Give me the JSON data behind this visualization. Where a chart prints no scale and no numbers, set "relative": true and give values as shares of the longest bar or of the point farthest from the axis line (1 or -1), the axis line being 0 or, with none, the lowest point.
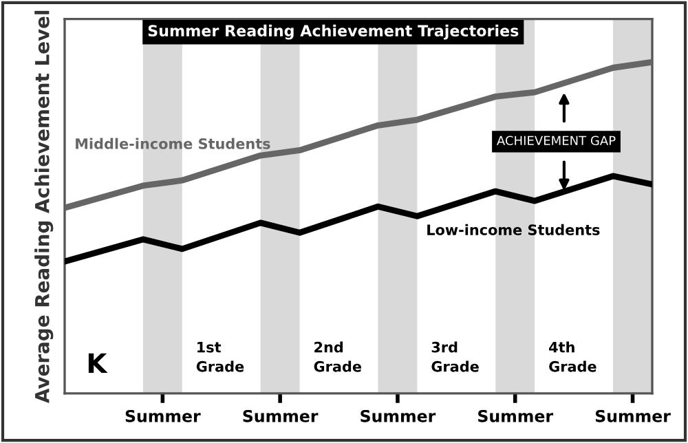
{
  "chart_data": {
    "type": "line",
    "relative": true,
    "title": "Summer Reading Achievement Trajectories",
    "ylabel": "Average Reading Achievement Level",
    "categories": [
      null,
      null,
      null,
      null,
      null,
      "Summer",
      null,
      null,
      null,
      null,
      null,
      "Summer",
      null,
      null,
      null,
      null,
      null,
      "Summer",
      null,
      null,
      null,
      null,
      null,
      "Summer",
      null,
      null,
      null,
      null,
      null,
      "Summer",
      null
    ],
    "tick_labels": "x",
    "series": [
      {
        "name": "Middle-income Students",
        "color": "#666666",
        "values": [
          0.56,
          null,
          null,
          null,
          0.627,
          null,
          0.643,
          null,
          null,
          null,
          0.718,
          null,
          0.734,
          null,
          null,
          null,
          0.809,
          null,
          0.826,
          null,
          null,
          null,
          0.896,
          null,
          0.909,
          null,
          null,
          null,
          0.983,
          null,
          1.0
        ]
      },
      {
        "name": "Low-income Students",
        "color": "#000000",
        "values": [
          0.398,
          null,
          null,
          null,
          0.465,
          null,
          0.436,
          null,
          null,
          null,
          0.515,
          null,
          0.485,
          null,
          null,
          null,
          0.564,
          null,
          0.535,
          null,
          null,
          null,
          0.61,
          null,
          0.581,
          null,
          null,
          null,
          0.656,
          null,
          0.631
        ]
      }
    ],
    "annotations": [
      "K",
      "1st\nGrade",
      "2nd\nGrade",
      "3rd\nGrade",
      "4th\nGrade",
      "ACHIEVEMENT GAP"
    ],
    "grid": false,
    "legend": false,
    "marker": "none",
    "line_style": "solid"
  }
}
